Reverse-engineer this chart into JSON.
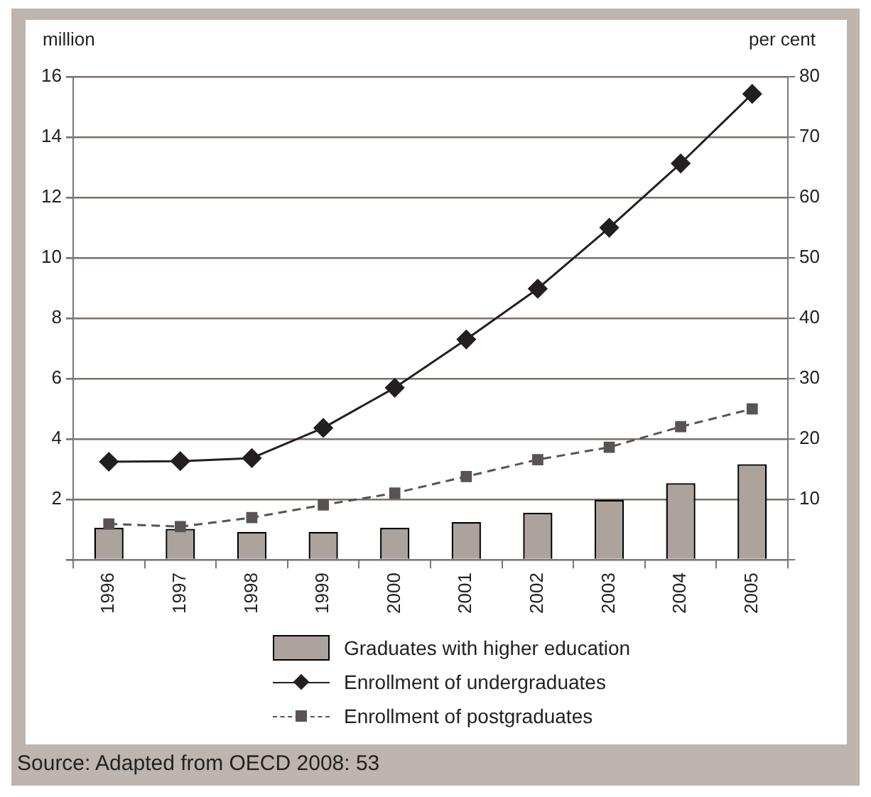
{
  "chart_data": {
    "type": "bar",
    "categories": [
      "1996",
      "1997",
      "1998",
      "1999",
      "2000",
      "2001",
      "2002",
      "2003",
      "2004",
      "2005"
    ],
    "series": [
      {
        "name": "Graduates with higher education",
        "type": "bar",
        "color": "#aca39c",
        "values": [
          1.06,
          1.03,
          0.93,
          0.93,
          1.06,
          1.25,
          1.56,
          1.99,
          2.54,
          3.17
        ]
      },
      {
        "name": "Enrollment of undergraduates",
        "type": "line",
        "color": "#231f20",
        "marker": "diamond",
        "line_style": "solid",
        "values": [
          3.25,
          3.27,
          3.37,
          4.37,
          5.7,
          7.3,
          8.98,
          11.0,
          13.13,
          15.43
        ]
      },
      {
        "name": "Enrollment of postgraduates",
        "type": "line",
        "color": "#595353",
        "marker": "square",
        "line_style": "dashed",
        "values": [
          1.19,
          1.1,
          1.4,
          1.82,
          2.21,
          2.76,
          3.32,
          3.73,
          4.41,
          5.0
        ]
      }
    ],
    "ylabel": "million",
    "y2label": "per cent",
    "ylim": [
      0,
      16
    ],
    "yticks": [
      {
        "value": 0,
        "label": null
      },
      2,
      4,
      6,
      8,
      10,
      12,
      14,
      16
    ],
    "y2lim": [
      0,
      80
    ],
    "y2ticks": [
      {
        "value": 0,
        "label": null
      },
      10,
      20,
      30,
      40,
      50,
      60,
      70,
      80
    ],
    "grid": "y",
    "legend": "bottom",
    "annotations": [
      "Source: Adapted from OECD 2008: 53"
    ]
  }
}
